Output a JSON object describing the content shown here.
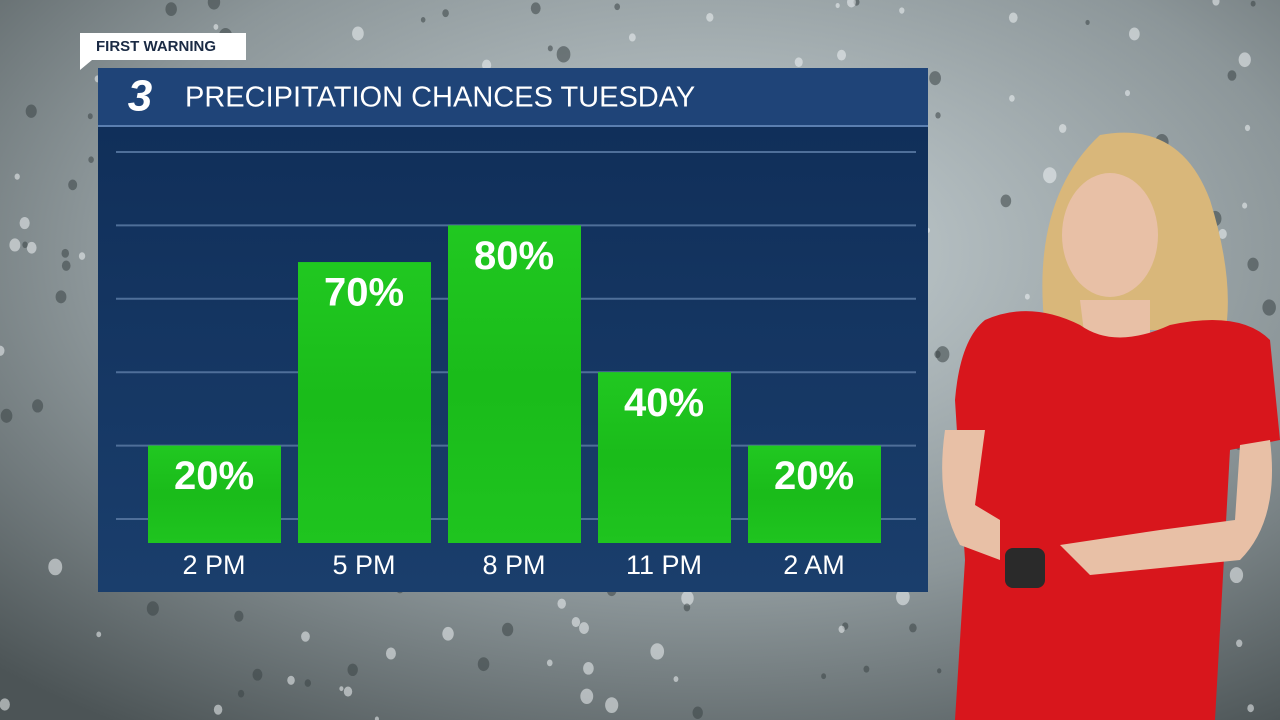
{
  "badge": "FIRST WARNING",
  "logo": "3",
  "chart_data": {
    "type": "bar",
    "title": "PRECIPITATION CHANCES TUESDAY",
    "categories": [
      "2 PM",
      "5 PM",
      "8 PM",
      "11 PM",
      "2 AM"
    ],
    "values": [
      20,
      70,
      80,
      40,
      20
    ],
    "value_labels": [
      "20%",
      "70%",
      "80%",
      "40%",
      "20%"
    ],
    "color": "#1fc41f",
    "ylim": [
      0,
      100
    ],
    "yticks": [
      0,
      20,
      40,
      60,
      80,
      100
    ],
    "grid": true
  }
}
